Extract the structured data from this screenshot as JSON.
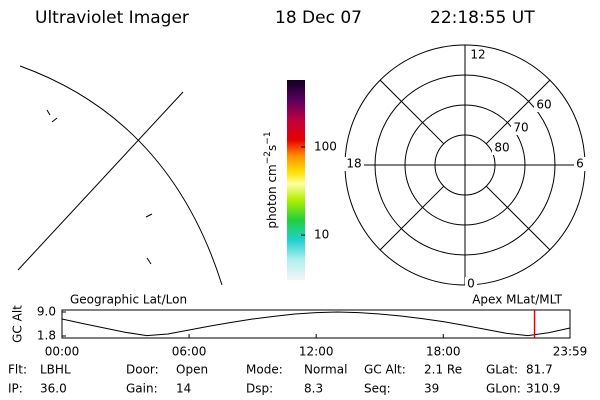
{
  "header": {
    "title": "Ultraviolet Imager",
    "date": "18 Dec 07",
    "time": "22:18:55 UT"
  },
  "colorbar": {
    "label_parts": [
      "photon cm",
      "−2",
      "s",
      "−1"
    ],
    "ticks": [
      10,
      100
    ],
    "lim": [
      3.1,
      575
    ],
    "log": true
  },
  "polar": {
    "mlt_labels": [
      "12",
      "18",
      "6",
      "0"
    ],
    "lat_labels": [
      "80",
      "70",
      "60"
    ]
  },
  "chart_data": {
    "type": "line",
    "top_left_label": "Geographic Lat/Lon",
    "top_right_label": "Apex MLat/MLT",
    "ylabel": "GC Alt",
    "x": [
      0,
      1,
      2,
      3,
      4,
      5,
      6,
      7,
      8,
      9,
      10,
      11,
      12,
      13,
      14,
      15,
      16,
      17,
      18,
      19,
      20,
      21,
      22,
      23,
      23.983
    ],
    "values": [
      6.9,
      5.5,
      4.2,
      2.9,
      1.9,
      2.4,
      3.6,
      4.8,
      5.9,
      6.9,
      7.7,
      8.4,
      8.8,
      9.0,
      8.8,
      8.4,
      7.8,
      7.0,
      6.1,
      5.0,
      3.8,
      2.6,
      1.9,
      2.8,
      4.2
    ],
    "color": "#000000",
    "marker_x": 22.31,
    "marker_color": "#e00000",
    "xlim": [
      0,
      23.983
    ],
    "ylim": [
      1.2,
      9.6
    ],
    "xticks": [
      {
        "value": 0,
        "label": "00:00"
      },
      {
        "value": 6,
        "label": "06:00"
      },
      {
        "value": 12,
        "label": "12:00"
      },
      {
        "value": 18,
        "label": "18:00"
      },
      {
        "value": 23.983,
        "label": "23:59"
      }
    ],
    "yticks": [
      {
        "value": 1.8,
        "label": "1.8"
      },
      {
        "value": 9,
        "label": "9.0"
      }
    ]
  },
  "footer": [
    [
      [
        "Flt:",
        "LBHL"
      ],
      [
        "IP:",
        "36.0"
      ]
    ],
    [
      [
        "Door:",
        "Open"
      ],
      [
        "Gain:",
        "14"
      ]
    ],
    [
      [
        "Mode:",
        "Normal"
      ],
      [
        "Dsp:",
        "8.3"
      ]
    ],
    [
      [
        "GC Alt:",
        "2.1 Re"
      ],
      [
        "Seq:",
        "39"
      ]
    ],
    [
      [
        "GLat:",
        "81.7"
      ],
      [
        "GLon:",
        "310.9"
      ]
    ]
  ]
}
